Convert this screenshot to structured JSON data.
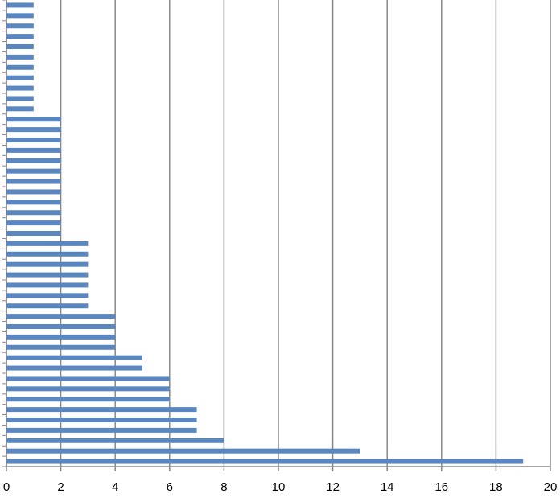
{
  "chart_data": {
    "type": "hbar",
    "color": "#5a87bf",
    "grid": true,
    "categories": [
      null,
      null,
      null,
      null,
      null,
      null,
      null,
      null,
      null,
      null,
      null,
      null,
      null,
      null,
      null,
      null,
      null,
      null,
      null,
      null,
      null,
      null,
      null,
      null,
      null,
      null,
      null,
      null,
      null,
      null,
      null,
      null,
      null,
      null,
      null,
      null,
      null,
      null,
      null,
      null,
      null,
      null,
      null,
      null,
      null
    ],
    "values": [
      1,
      1,
      1,
      1,
      1,
      1,
      1,
      1,
      1,
      1,
      1,
      2,
      2,
      2,
      2,
      2,
      2,
      2,
      2,
      2,
      2,
      2,
      2,
      3,
      3,
      3,
      3,
      3,
      3,
      3,
      4,
      4,
      4,
      4,
      5,
      5,
      6,
      6,
      6,
      7,
      7,
      7,
      8,
      13,
      19
    ],
    "xlim": [
      0,
      20
    ],
    "xticks": [
      0,
      2,
      4,
      6,
      8,
      10,
      12,
      14,
      16,
      18,
      20
    ]
  }
}
